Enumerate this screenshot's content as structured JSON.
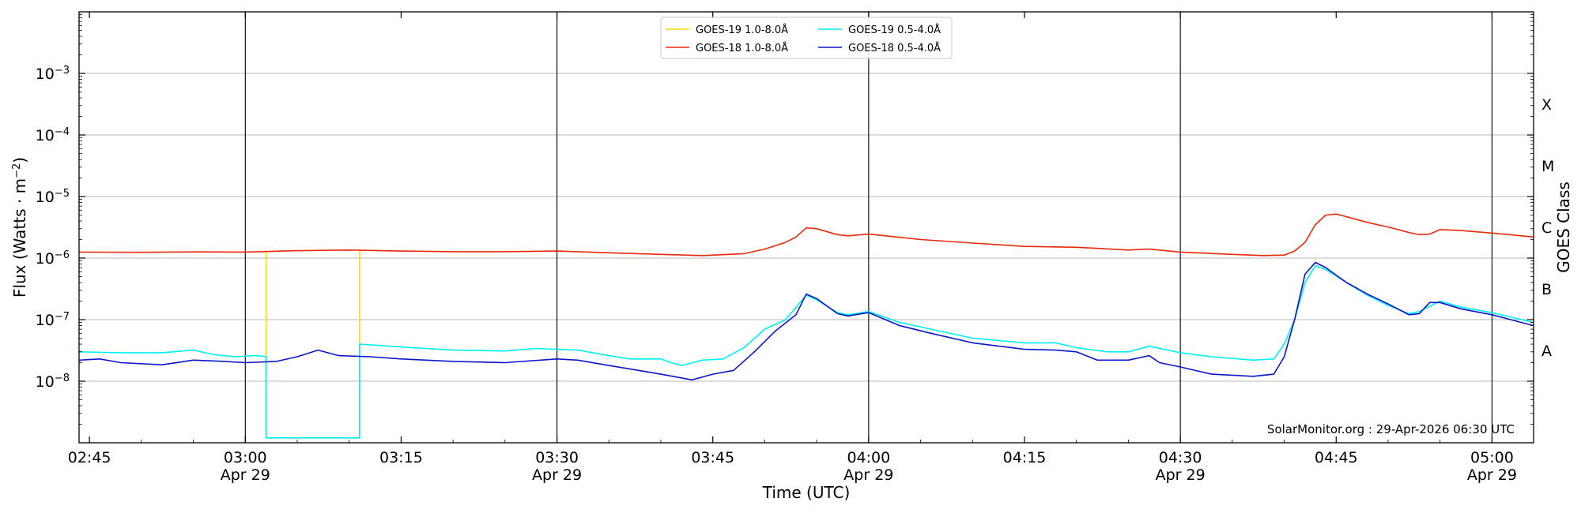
{
  "chart_data": {
    "type": "line",
    "xlabel": "Time (UTC)",
    "ylabel_main": "Flux (Watts · m",
    "ylabel_sup": "−2",
    "ylabel_close": ")",
    "right_label": "GOES Class",
    "credit": "SolarMonitor.org : 29-Apr-2026 06:30 UTC",
    "x_range": [
      "02:44",
      "05:04"
    ],
    "y_scale": "log",
    "ylim": [
      1e-09,
      0.01
    ],
    "y_ticks": [
      {
        "value": 1e-08,
        "base": "10",
        "exp": "−8"
      },
      {
        "value": 1e-07,
        "base": "10",
        "exp": "−7"
      },
      {
        "value": 1e-06,
        "base": "10",
        "exp": "−6"
      },
      {
        "value": 1e-05,
        "base": "10",
        "exp": "−5"
      },
      {
        "value": 0.0001,
        "base": "10",
        "exp": "−4"
      },
      {
        "value": 0.001,
        "base": "10",
        "exp": "−3"
      }
    ],
    "x_ticks": [
      {
        "time": "02:45",
        "label": "02:45",
        "date": ""
      },
      {
        "time": "03:00",
        "label": "03:00",
        "date": "Apr 29"
      },
      {
        "time": "03:15",
        "label": "03:15",
        "date": ""
      },
      {
        "time": "03:30",
        "label": "03:30",
        "date": "Apr 29"
      },
      {
        "time": "03:45",
        "label": "03:45",
        "date": ""
      },
      {
        "time": "04:00",
        "label": "04:00",
        "date": "Apr 29"
      },
      {
        "time": "04:15",
        "label": "04:15",
        "date": ""
      },
      {
        "time": "04:30",
        "label": "04:30",
        "date": "Apr 29"
      },
      {
        "time": "04:45",
        "label": "04:45",
        "date": ""
      },
      {
        "time": "05:00",
        "label": "05:00",
        "date": "Apr 29"
      }
    ],
    "vlines": [
      "03:00",
      "03:30",
      "04:00",
      "04:30",
      "05:00"
    ],
    "hgrid": true,
    "goes_classes": [
      {
        "label": "A",
        "value": 3.16e-08
      },
      {
        "label": "B",
        "value": 3.16e-07
      },
      {
        "label": "C",
        "value": 3.16e-06
      },
      {
        "label": "M",
        "value": 3.16e-05
      },
      {
        "label": "X",
        "value": 0.000316
      }
    ],
    "legend": "top-center",
    "series": [
      {
        "name": "GOES-19 1.0-8.0Å",
        "color": "#ffd700",
        "points": [
          [
            "03:02",
            1.3e-06
          ],
          [
            "03:02",
            1.2e-09
          ],
          [
            "03:11",
            1.2e-09
          ],
          [
            "03:11",
            1.35e-06
          ]
        ]
      },
      {
        "name": "GOES-18 1.0-8.0Å",
        "color": "#e8290b",
        "points": [
          [
            "02:44",
            1.25e-06
          ],
          [
            "02:50",
            1.24e-06
          ],
          [
            "02:55",
            1.26e-06
          ],
          [
            "03:00",
            1.25e-06
          ],
          [
            "03:05",
            1.32e-06
          ],
          [
            "03:10",
            1.35e-06
          ],
          [
            "03:15",
            1.3e-06
          ],
          [
            "03:20",
            1.27e-06
          ],
          [
            "03:25",
            1.27e-06
          ],
          [
            "03:30",
            1.3e-06
          ],
          [
            "03:35",
            1.22e-06
          ],
          [
            "03:40",
            1.15e-06
          ],
          [
            "03:44",
            1.1e-06
          ],
          [
            "03:48",
            1.18e-06
          ],
          [
            "03:50",
            1.4e-06
          ],
          [
            "03:52",
            1.8e-06
          ],
          [
            "03:53",
            2.2e-06
          ],
          [
            "03:54",
            3.1e-06
          ],
          [
            "03:55",
            3e-06
          ],
          [
            "03:57",
            2.4e-06
          ],
          [
            "03:58",
            2.3e-06
          ],
          [
            "04:00",
            2.45e-06
          ],
          [
            "04:05",
            2e-06
          ],
          [
            "04:10",
            1.75e-06
          ],
          [
            "04:15",
            1.55e-06
          ],
          [
            "04:20",
            1.5e-06
          ],
          [
            "04:25",
            1.35e-06
          ],
          [
            "04:27",
            1.4e-06
          ],
          [
            "04:30",
            1.25e-06
          ],
          [
            "04:35",
            1.15e-06
          ],
          [
            "04:38",
            1.1e-06
          ],
          [
            "04:40",
            1.12e-06
          ],
          [
            "04:41",
            1.3e-06
          ],
          [
            "04:42",
            1.8e-06
          ],
          [
            "04:43",
            3.5e-06
          ],
          [
            "04:44",
            5e-06
          ],
          [
            "04:45",
            5.2e-06
          ],
          [
            "04:46",
            4.7e-06
          ],
          [
            "04:48",
            3.8e-06
          ],
          [
            "04:50",
            3.2e-06
          ],
          [
            "04:52",
            2.6e-06
          ],
          [
            "04:53",
            2.4e-06
          ],
          [
            "04:54",
            2.45e-06
          ],
          [
            "04:55",
            2.9e-06
          ],
          [
            "04:57",
            2.8e-06
          ],
          [
            "05:00",
            2.55e-06
          ],
          [
            "05:04",
            2.2e-06
          ]
        ]
      },
      {
        "name": "GOES-19 0.5-4.0Å",
        "color": "#00f0f0",
        "points": [
          [
            "02:44",
            3e-08
          ],
          [
            "02:48",
            2.9e-08
          ],
          [
            "02:52",
            2.9e-08
          ],
          [
            "02:55",
            3.2e-08
          ],
          [
            "02:57",
            2.7e-08
          ],
          [
            "02:59",
            2.5e-08
          ],
          [
            "03:01",
            2.6e-08
          ],
          [
            "03:02",
            2.5e-08
          ],
          [
            "03:02",
            1.2e-09
          ],
          [
            "03:11",
            1.2e-09
          ],
          [
            "03:11",
            4e-08
          ],
          [
            "03:15",
            3.6e-08
          ],
          [
            "03:20",
            3.2e-08
          ],
          [
            "03:25",
            3.1e-08
          ],
          [
            "03:28",
            3.4e-08
          ],
          [
            "03:30",
            3.3e-08
          ],
          [
            "03:32",
            3.2e-08
          ],
          [
            "03:35",
            2.6e-08
          ],
          [
            "03:37",
            2.3e-08
          ],
          [
            "03:40",
            2.3e-08
          ],
          [
            "03:41",
            2e-08
          ],
          [
            "03:42",
            1.8e-08
          ],
          [
            "03:44",
            2.2e-08
          ],
          [
            "03:46",
            2.3e-08
          ],
          [
            "03:48",
            3.5e-08
          ],
          [
            "03:50",
            7e-08
          ],
          [
            "03:52",
            1e-07
          ],
          [
            "03:54",
            2.5e-07
          ],
          [
            "03:55",
            2.1e-07
          ],
          [
            "03:57",
            1.3e-07
          ],
          [
            "03:58",
            1.2e-07
          ],
          [
            "04:00",
            1.35e-07
          ],
          [
            "04:03",
            9e-08
          ],
          [
            "04:06",
            7e-08
          ],
          [
            "04:10",
            5e-08
          ],
          [
            "04:15",
            4.2e-08
          ],
          [
            "04:18",
            4.2e-08
          ],
          [
            "04:20",
            3.5e-08
          ],
          [
            "04:23",
            3e-08
          ],
          [
            "04:25",
            3e-08
          ],
          [
            "04:27",
            3.7e-08
          ],
          [
            "04:30",
            2.9e-08
          ],
          [
            "04:33",
            2.5e-08
          ],
          [
            "04:37",
            2.2e-08
          ],
          [
            "04:39",
            2.3e-08
          ],
          [
            "04:40",
            4e-08
          ],
          [
            "04:41",
            1e-07
          ],
          [
            "04:42",
            4e-07
          ],
          [
            "04:43",
            7.5e-07
          ],
          [
            "04:44",
            6.5e-07
          ],
          [
            "04:46",
            4e-07
          ],
          [
            "04:48",
            2.5e-07
          ],
          [
            "04:50",
            1.7e-07
          ],
          [
            "04:52",
            1.25e-07
          ],
          [
            "04:53",
            1.35e-07
          ],
          [
            "04:55",
            2e-07
          ],
          [
            "04:57",
            1.6e-07
          ],
          [
            "05:00",
            1.3e-07
          ],
          [
            "05:04",
            9e-08
          ]
        ]
      },
      {
        "name": "GOES-18 0.5-4.0Å",
        "color": "#0a16c8",
        "points": [
          [
            "02:44",
            2.2e-08
          ],
          [
            "02:46",
            2.3e-08
          ],
          [
            "02:48",
            2e-08
          ],
          [
            "02:52",
            1.85e-08
          ],
          [
            "02:55",
            2.2e-08
          ],
          [
            "02:58",
            2.1e-08
          ],
          [
            "03:00",
            2e-08
          ],
          [
            "03:03",
            2.1e-08
          ],
          [
            "03:05",
            2.5e-08
          ],
          [
            "03:07",
            3.2e-08
          ],
          [
            "03:09",
            2.6e-08
          ],
          [
            "03:12",
            2.5e-08
          ],
          [
            "03:15",
            2.3e-08
          ],
          [
            "03:20",
            2.1e-08
          ],
          [
            "03:25",
            2e-08
          ],
          [
            "03:30",
            2.3e-08
          ],
          [
            "03:32",
            2.2e-08
          ],
          [
            "03:35",
            1.8e-08
          ],
          [
            "03:40",
            1.3e-08
          ],
          [
            "03:43",
            1.05e-08
          ],
          [
            "03:45",
            1.3e-08
          ],
          [
            "03:47",
            1.5e-08
          ],
          [
            "03:49",
            3e-08
          ],
          [
            "03:51",
            6.5e-08
          ],
          [
            "03:53",
            1.2e-07
          ],
          [
            "03:54",
            2.6e-07
          ],
          [
            "03:55",
            2.2e-07
          ],
          [
            "03:57",
            1.25e-07
          ],
          [
            "03:58",
            1.15e-07
          ],
          [
            "04:00",
            1.3e-07
          ],
          [
            "04:03",
            8e-08
          ],
          [
            "04:06",
            6e-08
          ],
          [
            "04:10",
            4.2e-08
          ],
          [
            "04:15",
            3.3e-08
          ],
          [
            "04:18",
            3.2e-08
          ],
          [
            "04:20",
            3e-08
          ],
          [
            "04:22",
            2.2e-08
          ],
          [
            "04:25",
            2.2e-08
          ],
          [
            "04:27",
            2.6e-08
          ],
          [
            "04:28",
            2e-08
          ],
          [
            "04:30",
            1.7e-08
          ],
          [
            "04:33",
            1.3e-08
          ],
          [
            "04:37",
            1.2e-08
          ],
          [
            "04:39",
            1.3e-08
          ],
          [
            "04:40",
            2.5e-08
          ],
          [
            "04:41",
            1e-07
          ],
          [
            "04:42",
            5.5e-07
          ],
          [
            "04:43",
            8.5e-07
          ],
          [
            "04:44",
            7e-07
          ],
          [
            "04:46",
            4e-07
          ],
          [
            "04:48",
            2.6e-07
          ],
          [
            "04:50",
            1.8e-07
          ],
          [
            "04:52",
            1.2e-07
          ],
          [
            "04:53",
            1.25e-07
          ],
          [
            "04:54",
            1.9e-07
          ],
          [
            "04:55",
            1.9e-07
          ],
          [
            "04:57",
            1.5e-07
          ],
          [
            "05:00",
            1.2e-07
          ],
          [
            "05:04",
            8e-08
          ]
        ]
      }
    ]
  }
}
